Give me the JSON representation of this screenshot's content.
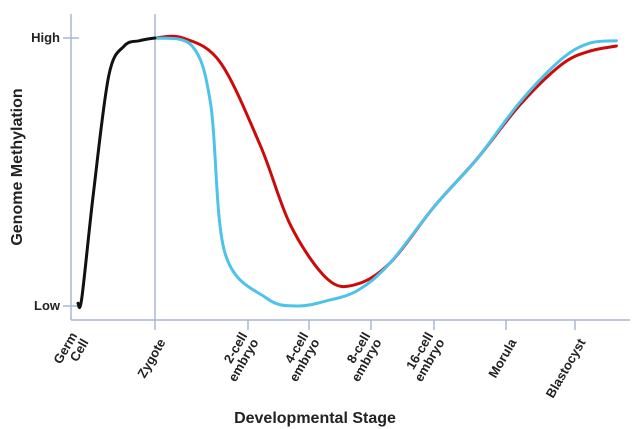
{
  "chart_data": {
    "type": "line",
    "xlabel": "Developmental Stage",
    "ylabel": "Genome Methylation",
    "y_ticks": [
      {
        "label": "High",
        "value": 1
      },
      {
        "label": "Low",
        "value": 0
      }
    ],
    "x_ticks": [
      {
        "label": "Germ Cell",
        "value": 0
      },
      {
        "label": "Zygote",
        "value": 1
      },
      {
        "label": "2-cell embryo",
        "value": 2
      },
      {
        "label": "4-cell embryo",
        "value": 3
      },
      {
        "label": "8-cell embryo",
        "value": 4
      },
      {
        "label": "16-cell embryo",
        "value": 5
      },
      {
        "label": "Morula",
        "value": 6
      },
      {
        "label": "Blastocyst",
        "value": 7
      }
    ],
    "xlim": [
      0,
      8
    ],
    "ylim": [
      0,
      1
    ],
    "zygote_marker_x": 1,
    "series": [
      {
        "color": "#111111",
        "points": [
          [
            0,
            0.01
          ],
          [
            0.05,
            0.03
          ],
          [
            0.2,
            0.42
          ],
          [
            0.4,
            0.86
          ],
          [
            0.6,
            0.97
          ],
          [
            0.8,
            0.99
          ],
          [
            1.0,
            1.0
          ]
        ]
      },
      {
        "color": "#cc0a0a",
        "points": [
          [
            1.0,
            1.0
          ],
          [
            1.3,
            1.0
          ],
          [
            1.7,
            0.91
          ],
          [
            2.2,
            0.6
          ],
          [
            2.7,
            0.3
          ],
          [
            3.3,
            0.1
          ],
          [
            3.75,
            0.08
          ],
          [
            4.3,
            0.16
          ],
          [
            5.0,
            0.37
          ],
          [
            5.6,
            0.55
          ],
          [
            6.2,
            0.75
          ],
          [
            6.8,
            0.9
          ],
          [
            7.2,
            0.95
          ],
          [
            7.6,
            0.97
          ]
        ]
      },
      {
        "color": "#4ec3ea",
        "points": [
          [
            1.0,
            1.0
          ],
          [
            1.4,
            0.97
          ],
          [
            1.6,
            0.75
          ],
          [
            1.75,
            0.2
          ],
          [
            2.3,
            0.03
          ],
          [
            2.8,
            0.0
          ],
          [
            3.3,
            0.02
          ],
          [
            3.8,
            0.06
          ],
          [
            4.3,
            0.16
          ],
          [
            5.0,
            0.37
          ],
          [
            5.6,
            0.55
          ],
          [
            6.2,
            0.76
          ],
          [
            6.8,
            0.92
          ],
          [
            7.2,
            0.98
          ],
          [
            7.6,
            0.99
          ]
        ]
      }
    ]
  }
}
